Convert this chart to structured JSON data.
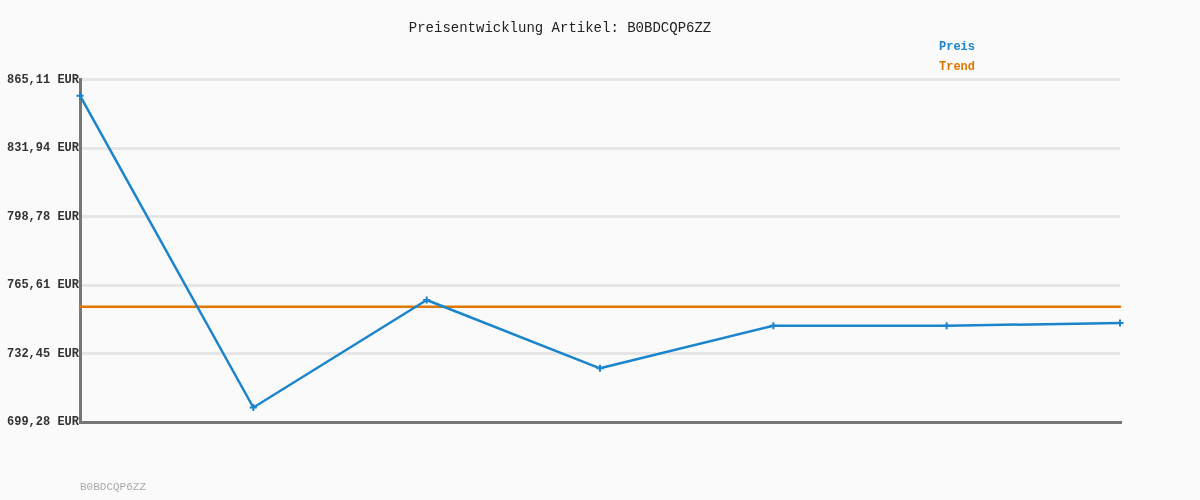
{
  "chart_data": {
    "type": "line",
    "title": "Preisentwicklung Artikel: B0BDCQP6ZZ",
    "categories": [
      null,
      null,
      null,
      null,
      null,
      null,
      null
    ],
    "series": [
      {
        "name": "Preis",
        "color": "#1a84cc",
        "marker": "cross",
        "values": [
          857.4,
          706.3,
          758.4,
          725.3,
          745.9,
          745.9,
          747.3
        ]
      },
      {
        "name": "Trend",
        "color": "#e07800",
        "marker": "none",
        "values": [
          755.1,
          755.1,
          755.1,
          755.1,
          755.1,
          755.1,
          755.1
        ]
      }
    ],
    "ylim": [
      699.28,
      865.11
    ],
    "yticks": [
      {
        "value": 699.28,
        "label": "699,28 EUR"
      },
      {
        "value": 732.45,
        "label": "732,45 EUR"
      },
      {
        "value": 765.61,
        "label": "765,61 EUR"
      },
      {
        "value": 798.78,
        "label": "798,78 EUR"
      },
      {
        "value": 831.94,
        "label": "831,94 EUR"
      },
      {
        "value": 865.11,
        "label": "865,11 EUR"
      }
    ],
    "grid": "y",
    "legend": "top right",
    "tick_labels": "y",
    "line_style": "solid",
    "annotations": [
      "B0BDCQP6ZZ"
    ]
  }
}
